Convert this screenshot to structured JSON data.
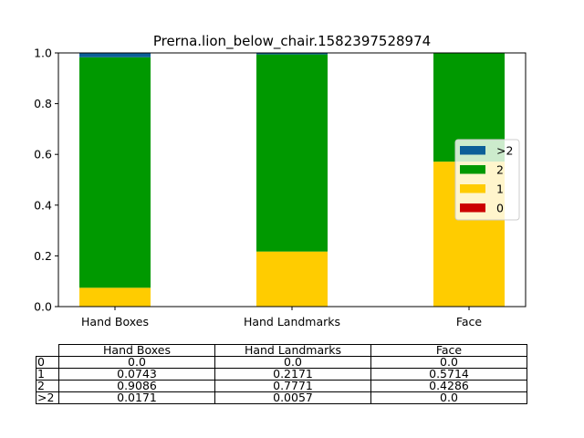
{
  "chart_data": {
    "type": "bar",
    "stacked": true,
    "title": "Prerna.lion_below_chair.1582397528974",
    "categories": [
      "Hand Boxes",
      "Hand Landmarks",
      "Face"
    ],
    "series": [
      {
        "name": "0",
        "color": "#cc0000",
        "values": [
          0.0,
          0.0,
          0.0
        ]
      },
      {
        "name": "1",
        "color": "#ffcc00",
        "values": [
          0.0743,
          0.2171,
          0.5714
        ]
      },
      {
        "name": "2",
        "color": "#009900",
        "values": [
          0.9086,
          0.7771,
          0.4286
        ]
      },
      {
        "name": ">2",
        "color": "#0c5f98",
        "values": [
          0.0171,
          0.0057,
          0.0
        ]
      }
    ],
    "ylim": [
      0,
      1.0
    ],
    "yticks": [
      "0.0",
      "0.2",
      "0.4",
      "0.6",
      "0.8",
      "1.0"
    ],
    "legend_position": "center-right",
    "legend_order": [
      ">2",
      "2",
      "1",
      "0"
    ]
  },
  "table": {
    "columns": [
      "Hand Boxes",
      "Hand Landmarks",
      "Face"
    ],
    "rows": [
      {
        "label": "0",
        "cells": [
          "0.0",
          "0.0",
          "0.0"
        ]
      },
      {
        "label": "1",
        "cells": [
          "0.0743",
          "0.2171",
          "0.5714"
        ]
      },
      {
        "label": "2",
        "cells": [
          "0.9086",
          "0.7771",
          "0.4286"
        ]
      },
      {
        "label": ">2",
        "cells": [
          "0.0171",
          "0.0057",
          "0.0"
        ]
      }
    ]
  }
}
